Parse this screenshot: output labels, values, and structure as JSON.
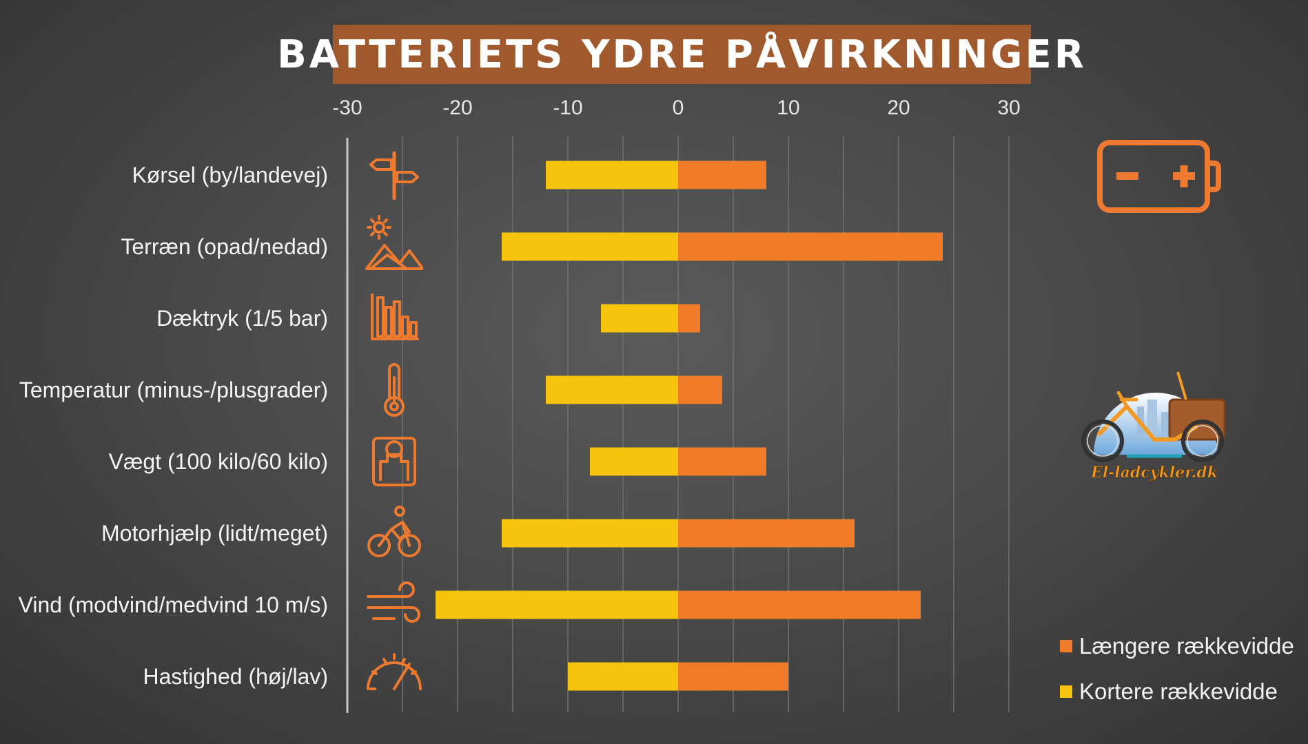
{
  "title": "BATTERIETS YDRE PÅVIRKNINGER",
  "colors": {
    "longer": "#f07c2a",
    "shorter": "#f6c40d",
    "icon": "#ee7a2f",
    "title_bg": "#a0592c",
    "grid": "#707070"
  },
  "chart_data": {
    "type": "bar",
    "orientation": "horizontal",
    "stacked": true,
    "xlim": [
      -30,
      30
    ],
    "x_ticks": [
      -30,
      -20,
      -10,
      0,
      10,
      20,
      30
    ],
    "x_tick_labels": [
      "-30",
      "-20",
      "-10",
      "0",
      "10",
      "20",
      "30"
    ],
    "grid": true,
    "categories": [
      "Kørsel (by/landevej)",
      "Terræn (opad/nedad)",
      "Dæktryk (1/5 bar)",
      "Temperatur (minus-/plusgrader)",
      "Vægt (100 kilo/60 kilo)",
      "Motorhjælp (lidt/meget)",
      "Vind (modvind/medvind 10 m/s)",
      "Hastighed (høj/lav)"
    ],
    "category_icons": [
      "signpost-icon",
      "terrain-icon",
      "tire-pressure-icon",
      "thermometer-icon",
      "scale-icon",
      "cyclist-icon",
      "wind-icon",
      "speedometer-icon"
    ],
    "series": [
      {
        "name": "Længere rækkevidde",
        "color": "#f07c2a",
        "values": [
          8,
          24,
          2,
          4,
          8,
          16,
          22,
          10
        ]
      },
      {
        "name": "Kortere rækkevidde",
        "color": "#f6c40d",
        "values": [
          -12,
          -16,
          -7,
          -12,
          -8,
          -16,
          -22,
          -10
        ]
      }
    ],
    "legend_position": "bottom-right"
  },
  "legend": [
    {
      "label": "Længere rækkevidde",
      "color": "#f07c2a"
    },
    {
      "label": "Kortere rækkevidde",
      "color": "#f6c40d"
    }
  ],
  "decorations": {
    "battery_icon": "battery-icon",
    "logo_text": "El-ladcykler.dk"
  }
}
